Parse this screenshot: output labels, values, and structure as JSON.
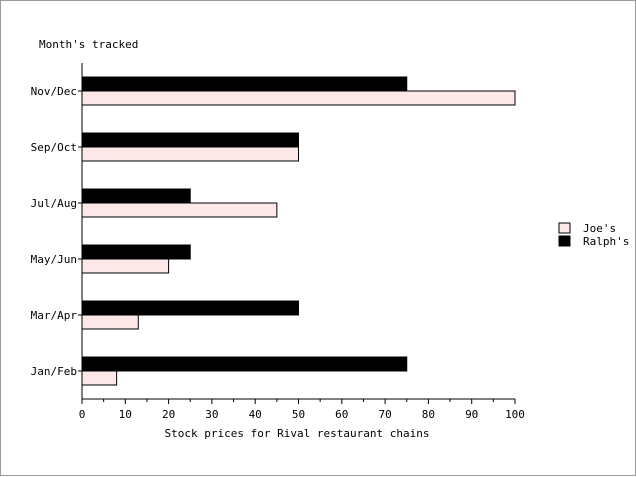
{
  "chart_data": {
    "type": "bar",
    "orientation": "horizontal",
    "categories": [
      "Jan/Feb",
      "Mar/Apr",
      "May/Jun",
      "Jul/Aug",
      "Sep/Oct",
      "Nov/Dec"
    ],
    "series": [
      {
        "name": "Joe's",
        "values": [
          8,
          13,
          20,
          45,
          50,
          100
        ],
        "color": "#fce8e8"
      },
      {
        "name": "Ralph's",
        "values": [
          75,
          50,
          25,
          25,
          50,
          75
        ],
        "color": "#000000"
      }
    ],
    "xlabel": "Stock prices for Rival restaurant chains",
    "ylabel": "Month's tracked",
    "xlim": [
      0,
      100
    ],
    "xticks": [
      0,
      10,
      20,
      30,
      40,
      50,
      60,
      70,
      80,
      90,
      100
    ],
    "grid": false,
    "legend_position": "right"
  }
}
